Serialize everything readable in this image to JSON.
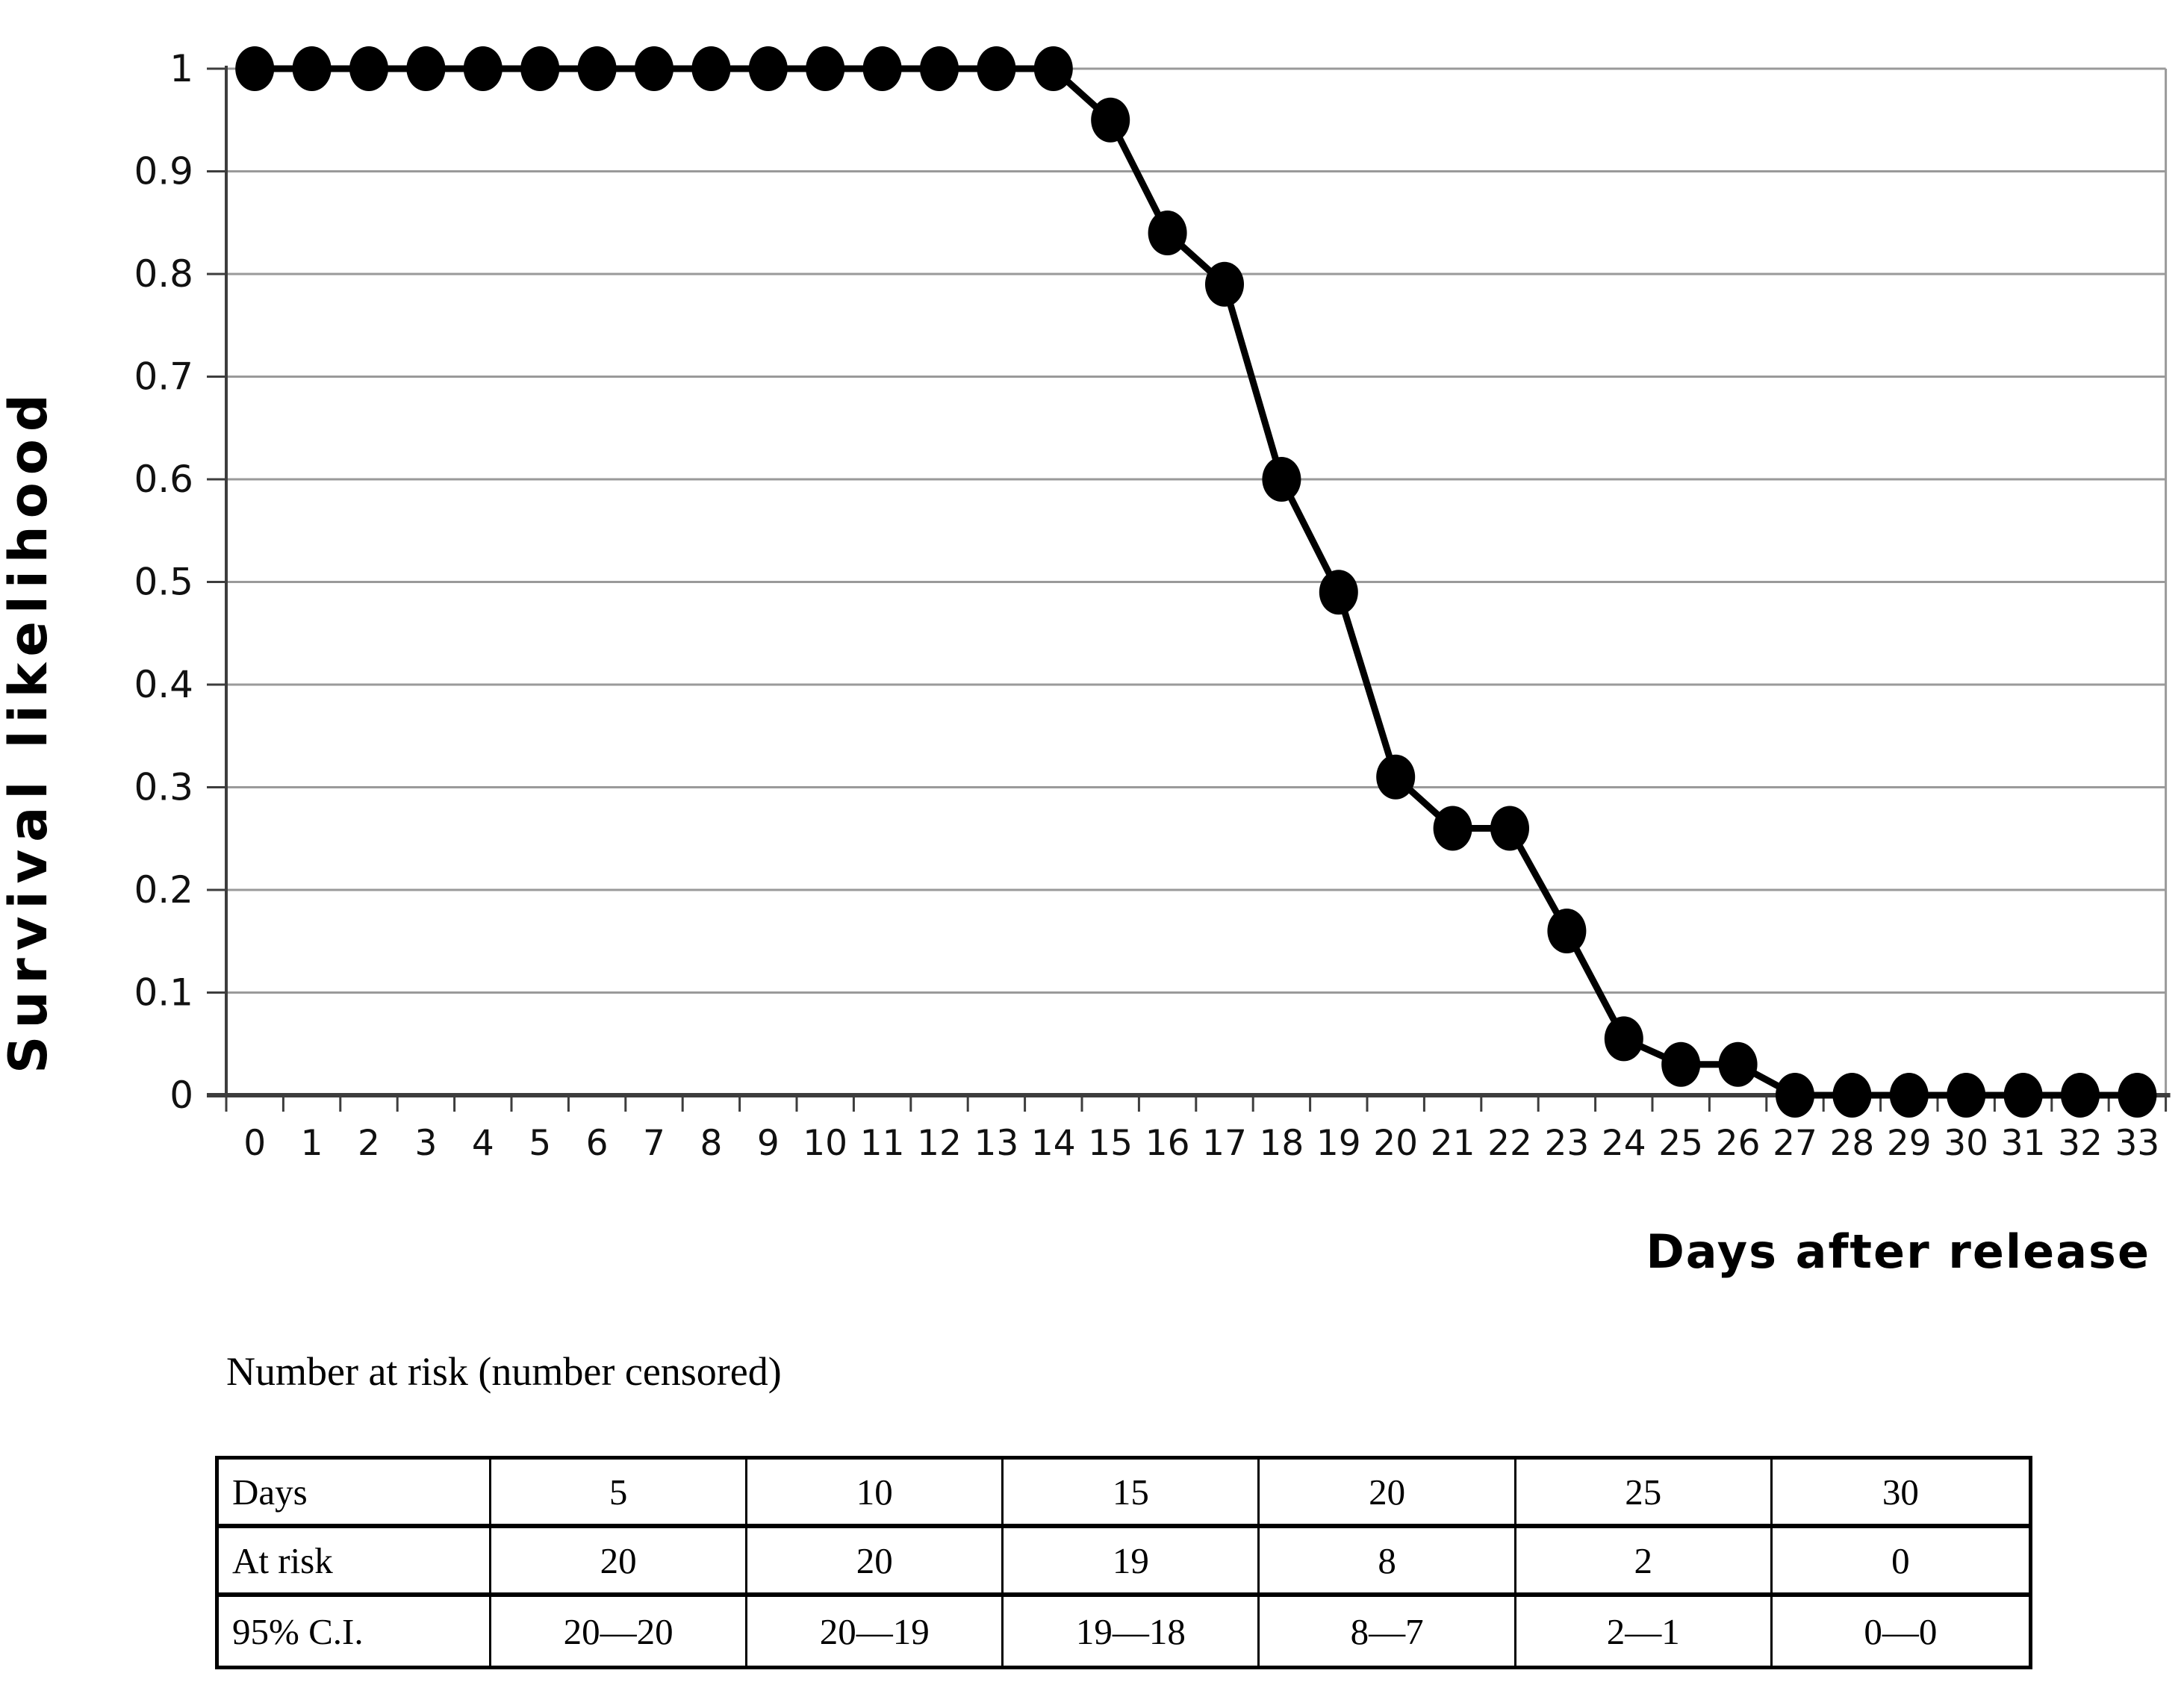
{
  "chart_data": {
    "type": "line",
    "title": "",
    "xlabel": "Days after release",
    "ylabel": "Survival likelihood",
    "x": [
      0,
      1,
      2,
      3,
      4,
      5,
      6,
      7,
      8,
      9,
      10,
      11,
      12,
      13,
      14,
      15,
      16,
      17,
      18,
      19,
      20,
      21,
      22,
      23,
      24,
      25,
      26,
      27,
      28,
      29,
      30,
      31,
      32,
      33
    ],
    "values": [
      1,
      1,
      1,
      1,
      1,
      1,
      1,
      1,
      1,
      1,
      1,
      1,
      1,
      1,
      1,
      0.95,
      0.84,
      0.79,
      0.6,
      0.49,
      0.31,
      0.26,
      0.26,
      0.16,
      0.055,
      0.03,
      0.03,
      0,
      0,
      0,
      0,
      0,
      0,
      0
    ],
    "xlim": [
      0,
      33
    ],
    "ylim": [
      0,
      1
    ],
    "yticks": [
      0,
      0.1,
      0.2,
      0.3,
      0.4,
      0.5,
      0.6,
      0.7,
      0.8,
      0.9,
      1
    ],
    "ytick_labels": [
      "0",
      "0.1",
      "0.2",
      "0.3",
      "0.4",
      "0.5",
      "0.6",
      "0.7",
      "0.8",
      "0.9",
      "1"
    ],
    "gridline_values": [
      0.1,
      0.2,
      0.3,
      0.4,
      0.5,
      0.6,
      0.7,
      0.8,
      0.9,
      1
    ],
    "grid": "horizontal",
    "legend": "none",
    "marker": "filled-ellipse",
    "line_color": "#000000",
    "marker_color": "#000000",
    "gridline_color": "#9a9a9a",
    "axis_color": "#3d3d3d"
  },
  "caption": "Number at risk (number censored)",
  "risk_table": {
    "rows": [
      {
        "label": "Days",
        "cells": [
          "5",
          "10",
          "15",
          "20",
          "25",
          "30"
        ]
      },
      {
        "label": "At risk",
        "cells": [
          "20",
          "20",
          "19",
          "8",
          "2",
          "0"
        ]
      },
      {
        "label": "95% C.I.",
        "cells": [
          "20—20",
          "20—19",
          "19—18",
          "8—7",
          "2—1",
          "0—0"
        ]
      }
    ]
  }
}
